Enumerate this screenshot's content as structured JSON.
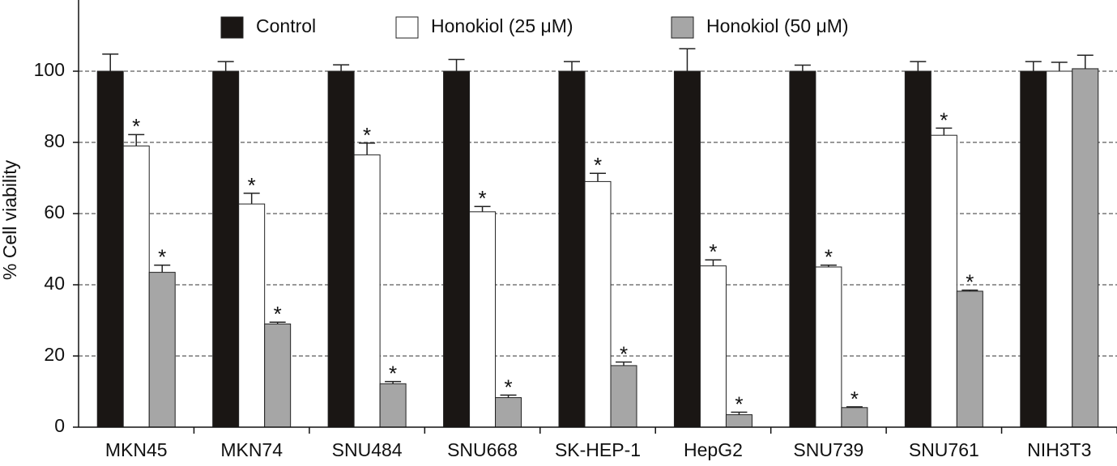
{
  "chart_data": {
    "type": "bar",
    "y_label": "% Cell viability",
    "categories": [
      "MKN45",
      "MKN74",
      "SNU484",
      "SNU668",
      "SK-HEP-1",
      "HepG2",
      "SNU739",
      "SNU761",
      "NIH3T3"
    ],
    "series": [
      {
        "name": "Control",
        "color": "#1a1614",
        "values": [
          100,
          100,
          100,
          100,
          100,
          100,
          100,
          100,
          100
        ],
        "errors": [
          4.8,
          2.7,
          1.8,
          3.3,
          2.7,
          6.3,
          1.7,
          2.7,
          2.7
        ],
        "labels": [
          null,
          null,
          null,
          null,
          null,
          null,
          null,
          null,
          null
        ]
      },
      {
        "name": "Honokiol (25 μM)",
        "color": "#ffffff",
        "values": [
          79,
          62.7,
          76.5,
          60.5,
          69,
          45.3,
          45,
          82,
          100
        ],
        "errors": [
          3.2,
          3,
          3.3,
          1.5,
          2.3,
          1.7,
          0.5,
          2,
          2.5
        ],
        "labels": [
          "*",
          "*",
          "*",
          "*",
          "*",
          "*",
          "*",
          "*",
          null
        ]
      },
      {
        "name": "Honokiol (50 μM)",
        "color": "#a6a6a6",
        "values": [
          43.5,
          29,
          12.2,
          8.3,
          17.3,
          3.5,
          5.5,
          38.2,
          100.7
        ],
        "errors": [
          2,
          0.5,
          0.6,
          0.7,
          1,
          0.7,
          0.2,
          0.3,
          3.8
        ],
        "labels": [
          "*",
          "*",
          "*",
          "*",
          "*",
          "*",
          "*",
          "*",
          null
        ]
      }
    ],
    "ylim": [
      0,
      120
    ],
    "yticks": [
      0,
      20,
      40,
      60,
      80,
      100
    ],
    "grid": true
  }
}
